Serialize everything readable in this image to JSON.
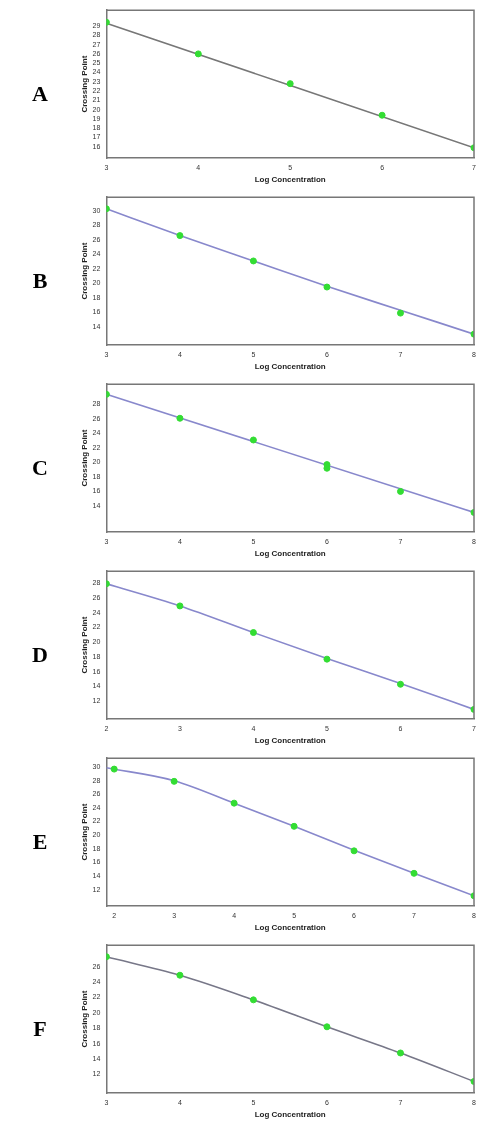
{
  "chart_data": [
    {
      "type": "scatter",
      "title": "A",
      "xlabel": "Log Concentration",
      "ylabel": "Crossing Point",
      "xlim": [
        3,
        7
      ],
      "ylim": [
        14.8,
        30.7
      ],
      "xticks": [
        3,
        4,
        5,
        6,
        7
      ],
      "yticks": [
        16,
        17,
        18,
        19,
        20,
        21,
        22,
        23,
        24,
        25,
        26,
        27,
        28,
        29
      ],
      "series": [
        {
          "type": "scatter",
          "marker": "circle",
          "color": "#33dd33",
          "x": [
            3,
            4,
            5,
            6,
            7
          ],
          "values": [
            29.4,
            26.0,
            22.8,
            19.4,
            15.9
          ]
        },
        {
          "type": "line",
          "marker": "none",
          "color": "#777777",
          "x": [
            3,
            7
          ],
          "values": [
            29.3,
            15.9
          ]
        }
      ]
    },
    {
      "type": "scatter",
      "title": "B",
      "xlabel": "Log Concentration",
      "ylabel": "Crossing Point",
      "xlim": [
        3,
        8
      ],
      "ylim": [
        11.5,
        31.9
      ],
      "xticks": [
        3,
        4,
        5,
        6,
        7,
        8
      ],
      "yticks": [
        14,
        16,
        18,
        20,
        22,
        24,
        26,
        28,
        30
      ],
      "series": [
        {
          "type": "scatter",
          "marker": "circle",
          "color": "#33dd33",
          "x": [
            3,
            4,
            5,
            6,
            7,
            8
          ],
          "values": [
            30.3,
            26.6,
            23.1,
            19.5,
            15.9,
            13.0
          ]
        },
        {
          "type": "line",
          "marker": "none",
          "color": "#8888cc",
          "x": [
            3,
            4,
            5,
            6,
            7,
            8
          ],
          "values": [
            30.3,
            26.6,
            23.1,
            19.6,
            16.3,
            13.0
          ]
        }
      ]
    },
    {
      "type": "scatter",
      "title": "C",
      "xlabel": "Log Concentration",
      "ylabel": "Crossing Point",
      "xlim": [
        3,
        8
      ],
      "ylim": [
        10.4,
        30.8
      ],
      "xticks": [
        3,
        4,
        5,
        6,
        7,
        8
      ],
      "yticks": [
        14,
        16,
        18,
        20,
        22,
        24,
        26,
        28
      ],
      "series": [
        {
          "type": "scatter",
          "marker": "circle",
          "color": "#33dd33",
          "x": [
            3,
            4,
            5,
            6,
            6,
            7,
            8
          ],
          "values": [
            29.4,
            26.1,
            23.1,
            19.7,
            19.2,
            16.0,
            13.1
          ]
        },
        {
          "type": "line",
          "marker": "none",
          "color": "#8888cc",
          "x": [
            3,
            8
          ],
          "values": [
            29.4,
            13.1
          ]
        }
      ]
    },
    {
      "type": "scatter",
      "title": "D",
      "xlabel": "Log Concentration",
      "ylabel": "Crossing Point",
      "xlim": [
        2,
        7
      ],
      "ylim": [
        9.6,
        29.6
      ],
      "xticks": [
        2,
        3,
        4,
        5,
        6,
        7
      ],
      "yticks": [
        12,
        14,
        16,
        18,
        20,
        22,
        24,
        26,
        28
      ],
      "series": [
        {
          "type": "scatter",
          "marker": "circle",
          "color": "#33dd33",
          "x": [
            2,
            3,
            4,
            5,
            6,
            7
          ],
          "values": [
            27.9,
            24.9,
            21.3,
            17.7,
            14.3,
            10.9
          ]
        },
        {
          "type": "line",
          "marker": "none",
          "color": "#8888cc",
          "x": [
            2,
            3,
            4,
            5,
            6,
            7
          ],
          "values": [
            27.9,
            24.9,
            21.3,
            17.8,
            14.4,
            10.9
          ]
        }
      ]
    },
    {
      "type": "scatter",
      "title": "E",
      "xlabel": "Log Concentration",
      "ylabel": "Crossing Point",
      "xlim": [
        1.87,
        8
      ],
      "ylim": [
        9.6,
        31.3
      ],
      "xticks": [
        2,
        3,
        4,
        5,
        6,
        7,
        8
      ],
      "yticks": [
        12,
        14,
        16,
        18,
        20,
        22,
        24,
        26,
        28,
        30
      ],
      "series": [
        {
          "type": "scatter",
          "marker": "circle",
          "color": "#33dd33",
          "x": [
            2,
            3,
            4,
            5,
            6,
            7,
            8
          ],
          "values": [
            29.7,
            27.9,
            24.7,
            21.3,
            17.7,
            14.4,
            11.1
          ]
        },
        {
          "type": "line",
          "marker": "none",
          "color": "#8888cc",
          "x": [
            1.87,
            3,
            4,
            5,
            6,
            7,
            8
          ],
          "values": [
            29.9,
            28.0,
            24.7,
            21.3,
            17.8,
            14.4,
            11.1
          ]
        }
      ]
    },
    {
      "type": "scatter",
      "title": "F",
      "xlabel": "Log Concentration",
      "ylabel": "Crossing Point",
      "xlim": [
        3,
        8
      ],
      "ylim": [
        9.6,
        28.8
      ],
      "xticks": [
        3,
        4,
        5,
        6,
        7,
        8
      ],
      "yticks": [
        12,
        14,
        16,
        18,
        20,
        22,
        24,
        26
      ],
      "series": [
        {
          "type": "scatter",
          "marker": "circle",
          "color": "#33dd33",
          "x": [
            3,
            4,
            5,
            6,
            7,
            8
          ],
          "values": [
            27.3,
            24.9,
            21.7,
            18.2,
            14.8,
            11.1
          ]
        },
        {
          "type": "line",
          "marker": "none",
          "color": "#777788",
          "x": [
            3,
            4,
            5,
            6,
            7,
            8
          ],
          "values": [
            27.3,
            24.9,
            21.7,
            18.2,
            14.8,
            11.1
          ]
        }
      ]
    }
  ]
}
